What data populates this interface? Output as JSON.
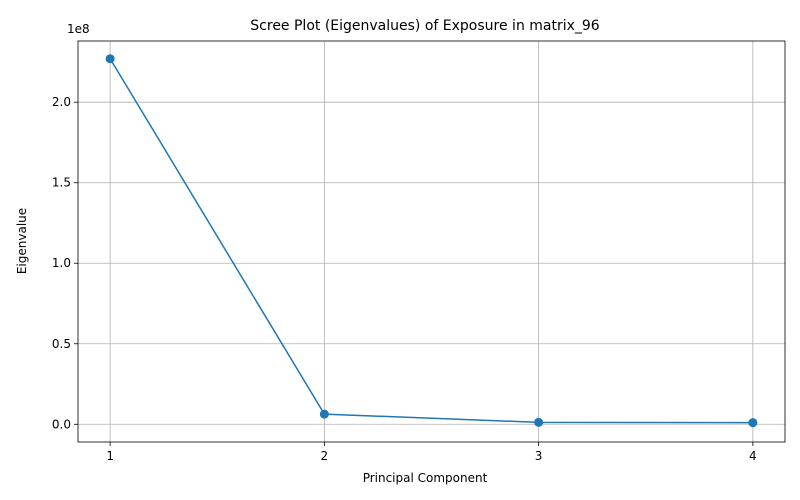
{
  "chart_data": {
    "type": "line",
    "title": "Scree Plot (Eigenvalues) of Exposure in matrix_96",
    "xlabel": "Principal Component",
    "ylabel": "Eigenvalue",
    "offset_text": "1e8",
    "x": [
      1,
      2,
      3,
      4
    ],
    "x_tick_labels": [
      "1",
      "2",
      "3",
      "4"
    ],
    "y_ticks": [
      0.0,
      0.5,
      1.0,
      1.5,
      2.0
    ],
    "y_tick_labels": [
      "0.0",
      "0.5",
      "1.0",
      "1.5",
      "2.0"
    ],
    "y_scale_factor": 100000000,
    "series": [
      {
        "values": [
          227000000,
          6300000,
          1200000,
          1000000
        ]
      }
    ],
    "xlim": [
      0.85,
      4.15
    ],
    "ylim": [
      -11000000,
      238000000
    ],
    "grid": true,
    "marker": "circle",
    "color": "#1f77b4"
  }
}
